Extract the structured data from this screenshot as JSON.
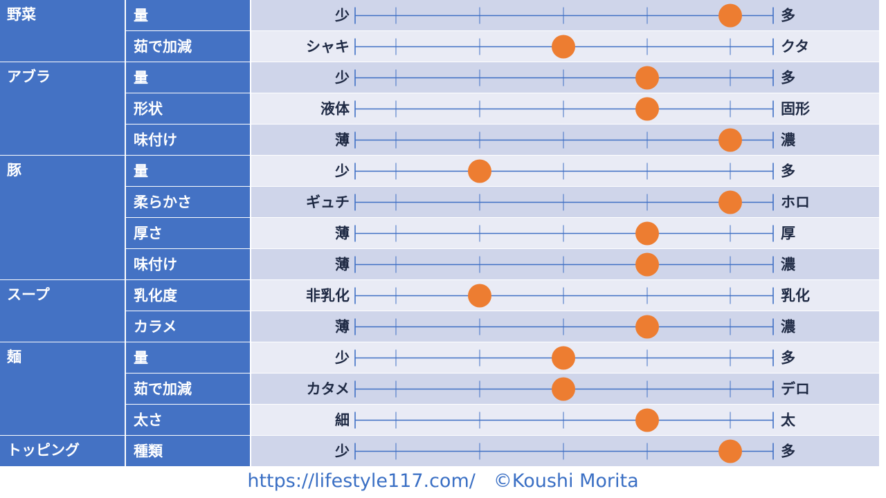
{
  "chart_data": {
    "type": "scatter",
    "scale_points": 5,
    "groups": [
      {
        "name": "野菜",
        "items": [
          {
            "label": "量",
            "left": "少",
            "right": "多",
            "value": 5
          },
          {
            "label": "茹で加減",
            "left": "シャキ",
            "right": "クタ",
            "value": 3
          }
        ]
      },
      {
        "name": "アブラ",
        "items": [
          {
            "label": "量",
            "left": "少",
            "right": "多",
            "value": 4
          },
          {
            "label": "形状",
            "left": "液体",
            "right": "固形",
            "value": 4
          },
          {
            "label": "味付け",
            "left": "薄",
            "right": "濃",
            "value": 5
          }
        ]
      },
      {
        "name": "豚",
        "items": [
          {
            "label": "量",
            "left": "少",
            "right": "多",
            "value": 2
          },
          {
            "label": "柔らかさ",
            "left": "ギュチ",
            "right": "ホロ",
            "value": 5
          },
          {
            "label": "厚さ",
            "left": "薄",
            "right": "厚",
            "value": 4
          },
          {
            "label": "味付け",
            "left": "薄",
            "right": "濃",
            "value": 4
          }
        ]
      },
      {
        "name": "スープ",
        "items": [
          {
            "label": "乳化度",
            "left": "非乳化",
            "right": "乳化",
            "value": 2
          },
          {
            "label": "カラメ",
            "left": "薄",
            "right": "濃",
            "value": 4
          }
        ]
      },
      {
        "name": "麺",
        "items": [
          {
            "label": "量",
            "left": "少",
            "right": "多",
            "value": 3
          },
          {
            "label": "茹で加減",
            "left": "カタメ",
            "right": "デロ",
            "value": 3
          },
          {
            "label": "太さ",
            "left": "細",
            "right": "太",
            "value": 4
          }
        ]
      },
      {
        "name": "トッピング",
        "items": [
          {
            "label": "種類",
            "left": "少",
            "right": "多",
            "value": 5
          }
        ]
      }
    ]
  },
  "colors": {
    "header_bg": "#4472c4",
    "header_text": "#ffffff",
    "row_dark": "#cfd5ea",
    "row_light": "#e9ebf5",
    "axis_line": "#3f6fc4",
    "marker": "#ed7d31",
    "label_text": "#1f2a44"
  },
  "footer": {
    "url": "https://lifestyle117.com/",
    "credit": "©Koushi Morita"
  }
}
